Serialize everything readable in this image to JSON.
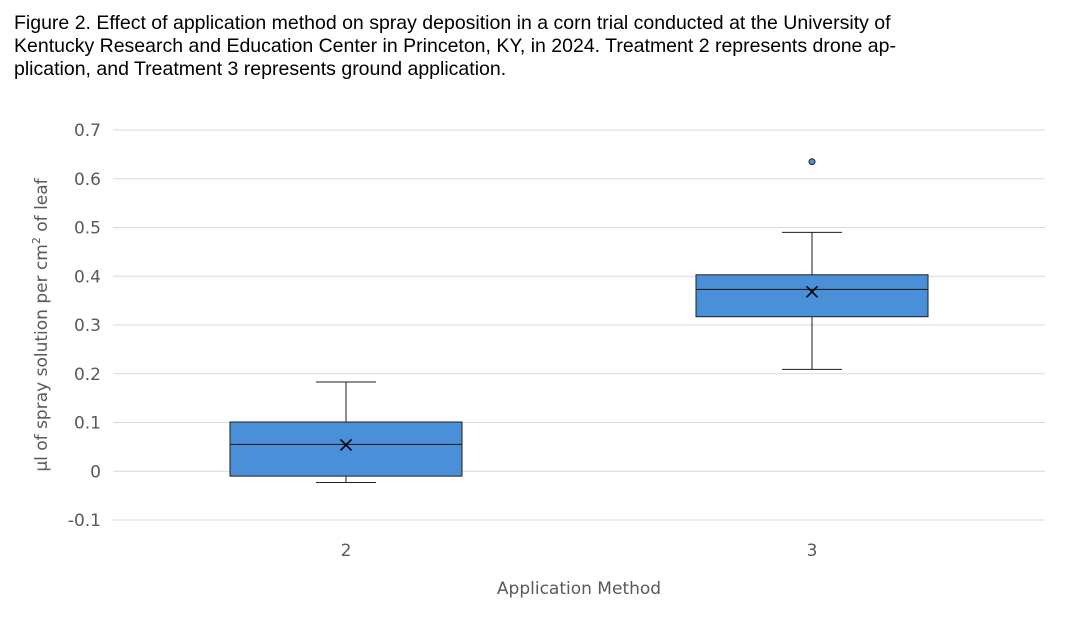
{
  "caption": {
    "line1": "Figure 2. Effect of application method on spray deposition in a corn trial conducted at the University of",
    "line2": "Kentucky Research and Education Center in Princeton, KY, in 2024. Treatment 2 represents drone ap-",
    "line3": "plication, and Treatment 3 represents ground application."
  },
  "chart_data": {
    "type": "box",
    "xlabel": "Application Method",
    "ylabel_prefix": "µl of spray solution per cm",
    "ylabel_sup": "2",
    "ylabel_suffix": " of leaf",
    "ylim": [
      -0.1,
      0.7
    ],
    "yticks": [
      -0.1,
      0,
      0.1,
      0.2,
      0.3,
      0.4,
      0.5,
      0.6,
      0.7
    ],
    "ytick_labels": [
      "-0.1",
      "0",
      "0.1",
      "0.2",
      "0.3",
      "0.4",
      "0.5",
      "0.6",
      "0.7"
    ],
    "grid": true,
    "categories": [
      "2",
      "3"
    ],
    "boxes": [
      {
        "category": "2",
        "whisker_low": -0.023,
        "q1": -0.01,
        "median": 0.055,
        "q3": 0.101,
        "whisker_high": 0.183,
        "mean": 0.054,
        "outliers": []
      },
      {
        "category": "3",
        "whisker_low": 0.209,
        "q1": 0.317,
        "median": 0.373,
        "q3": 0.403,
        "whisker_high": 0.49,
        "mean": 0.368,
        "outliers": [
          0.635
        ]
      }
    ],
    "colors": {
      "box_fill": "#4a90d9",
      "box_stroke": "#1f1f1f",
      "grid": "#d9d9d9",
      "text": "#595959"
    }
  }
}
